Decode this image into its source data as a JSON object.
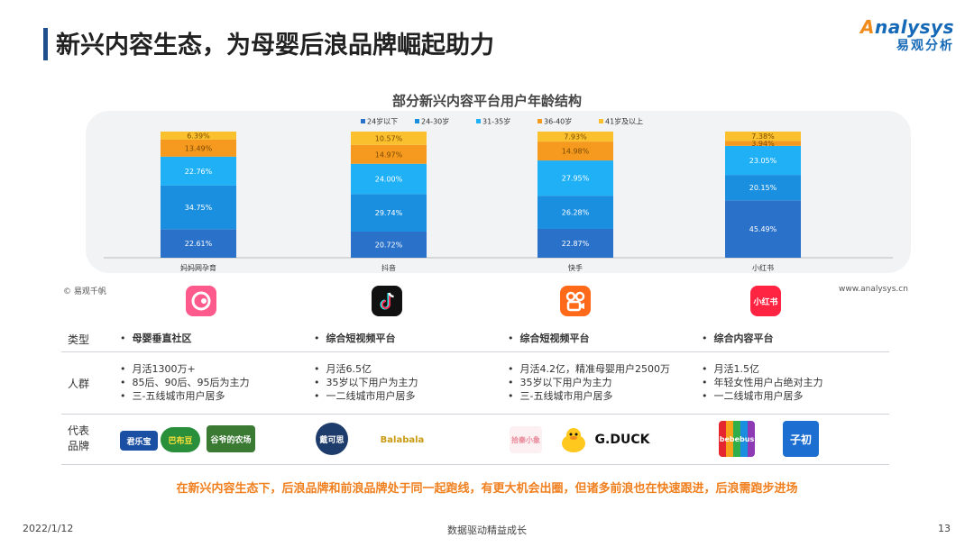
{
  "header": {
    "title": "新兴内容生态，为母婴后浪品牌崛起助力"
  },
  "logo": {
    "en_a": "A",
    "en_rest": "nalysys",
    "cn": "易观分析"
  },
  "chart_data": {
    "type": "bar",
    "stacked": true,
    "title": "部分新兴内容平台用户年龄结构",
    "categories": [
      "妈妈网孕育",
      "抖音",
      "快手",
      "小红书"
    ],
    "legend_position": "top",
    "series": [
      {
        "name": "24岁以下",
        "color": "#2a72c9",
        "values": [
          22.61,
          20.72,
          22.87,
          45.49
        ],
        "labels": [
          "22.61%",
          "20.72%",
          "22.87%",
          "45.49%"
        ]
      },
      {
        "name": "24-30岁",
        "color": "#1a8fe0",
        "values": [
          34.75,
          29.74,
          26.28,
          20.15
        ],
        "labels": [
          "34.75%",
          "29.74%",
          "26.28%",
          "20.15%"
        ]
      },
      {
        "name": "31-35岁",
        "color": "#1fb0f5",
        "values": [
          22.76,
          24.0,
          27.95,
          23.05
        ],
        "labels": [
          "22.76%",
          "24.00%",
          "27.95%",
          "23.05%"
        ]
      },
      {
        "name": "36-40岁",
        "color": "#f59a1f",
        "values": [
          13.49,
          14.97,
          14.98,
          3.94
        ],
        "labels": [
          "13.49%",
          "14.97%",
          "14.98%",
          "3.94%"
        ]
      },
      {
        "name": "41岁及以上",
        "color": "#fbc02d",
        "values": [
          6.39,
          10.57,
          7.93,
          7.38
        ],
        "labels": [
          "6.39%",
          "10.57%",
          "7.93%",
          "7.38%"
        ]
      }
    ],
    "ylim": [
      0,
      100
    ]
  },
  "source": "© 易观千帆",
  "site": "www.analysys.cn",
  "table": {
    "row_labels": {
      "type": "类型",
      "crowd": "人群",
      "brand_line1": "代表",
      "brand_line2": "品牌"
    },
    "columns": [
      {
        "type": "母婴垂直社区",
        "crowd": [
          "月活1300万+",
          "85后、90后、95后为主力",
          "三-五线城市用户居多"
        ],
        "icon_color": "#ff5a8c",
        "icon_name": "mama-app-icon"
      },
      {
        "type": "综合短视频平台",
        "crowd": [
          "月活6.5亿",
          "35岁以下用户为主力",
          "一二线城市用户居多"
        ],
        "icon_color": "#111111",
        "icon_name": "douyin-app-icon"
      },
      {
        "type": "综合短视频平台",
        "crowd": [
          "月活4.2亿，精准母婴用户2500万",
          "35岁以下用户为主力",
          "三-五线城市用户居多"
        ],
        "icon_color": "#ff6a1a",
        "icon_name": "kuaishou-app-icon"
      },
      {
        "type": "综合内容平台",
        "crowd": [
          "月活1.5亿",
          "年轻女性用户占绝对主力",
          "一二线城市用户居多"
        ],
        "icon_color": "#ff2442",
        "icon_name": "xiaohongshu-app-icon",
        "icon_text": "小红书"
      }
    ],
    "brands": {
      "b1": "君乐宝",
      "b2": "巴布豆",
      "b3": "谷爷的农场",
      "b4": "戴可思",
      "b5": "Balabala",
      "b6": "拾秦小象",
      "b7": "G.DUCK",
      "b8": "bebebus",
      "b9": "子初"
    }
  },
  "highlight": "在新兴内容生态下，后浪品牌和前浪品牌处于同一起跑线，有更大机会出圈，但诸多前浪也在快速跟进，后浪需跑步进场",
  "footer": {
    "date": "2022/1/12",
    "slogan": "数据驱动精益成长",
    "page": "13"
  }
}
